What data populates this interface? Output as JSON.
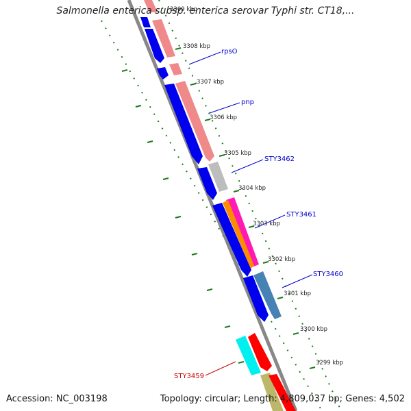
{
  "title": "Salmonella enterica subsp. enterica serovar Typhi str. CT18,...",
  "footer": {
    "accession": "Accession: NC_003198",
    "summary": "Topology: circular; Length: 4,809,037 bp; Genes: 4,502"
  },
  "colors": {
    "backbone": "#888888",
    "tick": "#1a7a1a",
    "label_line": "#0000cc",
    "label_text": "#0000cc",
    "label_red": "#cc0000"
  },
  "kbp_labels": [
    "3309 kbp",
    "3308 kbp",
    "3307 kbp",
    "3306 kbp",
    "3305 kbp",
    "3304 kbp",
    "3303 kbp",
    "3302 kbp",
    "3301 kbp",
    "3300 kbp",
    "3299 kbp"
  ],
  "gene_labels": [
    {
      "name": "rpsO",
      "color": "#0000cc"
    },
    {
      "name": "pnp",
      "color": "#0000cc"
    },
    {
      "name": "STY3462",
      "color": "#0000cc"
    },
    {
      "name": "STY3461",
      "color": "#0000cc"
    },
    {
      "name": "STY3460",
      "color": "#0000cc"
    },
    {
      "name": "STY3459",
      "color": "#cc0000"
    }
  ]
}
